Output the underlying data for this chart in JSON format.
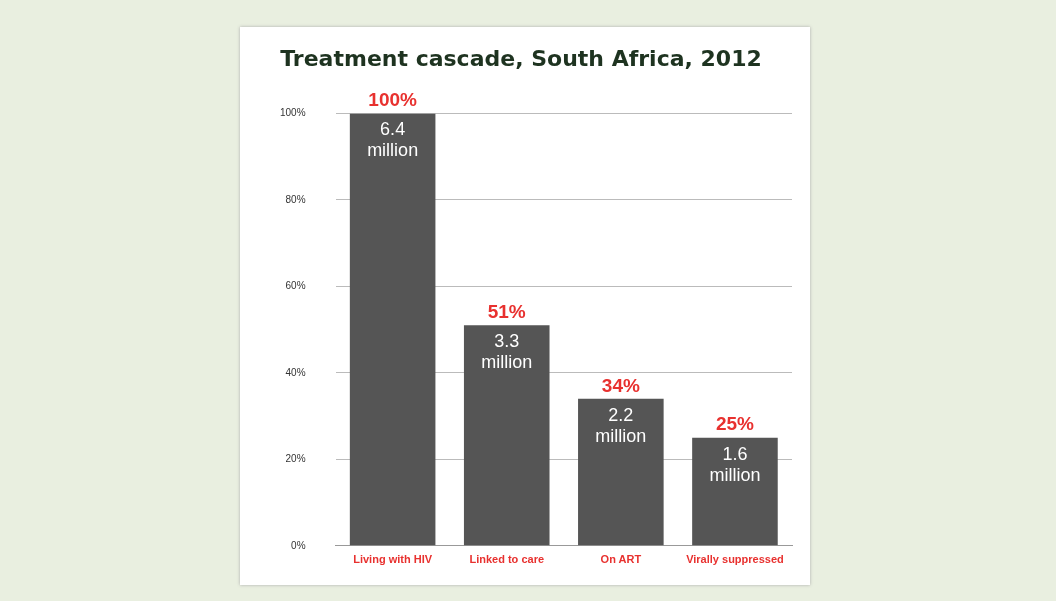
{
  "chart_data": {
    "type": "bar",
    "title": "Treatment cascade, South Africa, 2012",
    "categories": [
      "Living with HIV",
      "Linked to care",
      "On ART",
      "Virally suppressed"
    ],
    "values": [
      100,
      51,
      34,
      25
    ],
    "color": "#555555",
    "value_labels": [
      "100%",
      "51%",
      "34%",
      "25%"
    ],
    "annotations": [
      {
        "text": "6.4 million",
        "x": "Living with HIV",
        "y": 100
      },
      {
        "text": "3.3 million",
        "x": "Linked to care",
        "y": 51
      },
      {
        "text": "2.2 million",
        "x": "On ART",
        "y": 34
      },
      {
        "text": "1.6 million",
        "x": "Virally suppressed",
        "y": 25
      }
    ],
    "ylim": [
      0,
      100
    ],
    "yticks": [
      {
        "value": 0,
        "label": "0%"
      },
      {
        "value": 20,
        "label": "20%"
      },
      {
        "value": 40,
        "label": "40%"
      },
      {
        "value": 60,
        "label": "60%"
      },
      {
        "value": 80,
        "label": "80%"
      },
      {
        "value": 100,
        "label": "100%"
      }
    ],
    "grid": "y",
    "legend": false
  }
}
